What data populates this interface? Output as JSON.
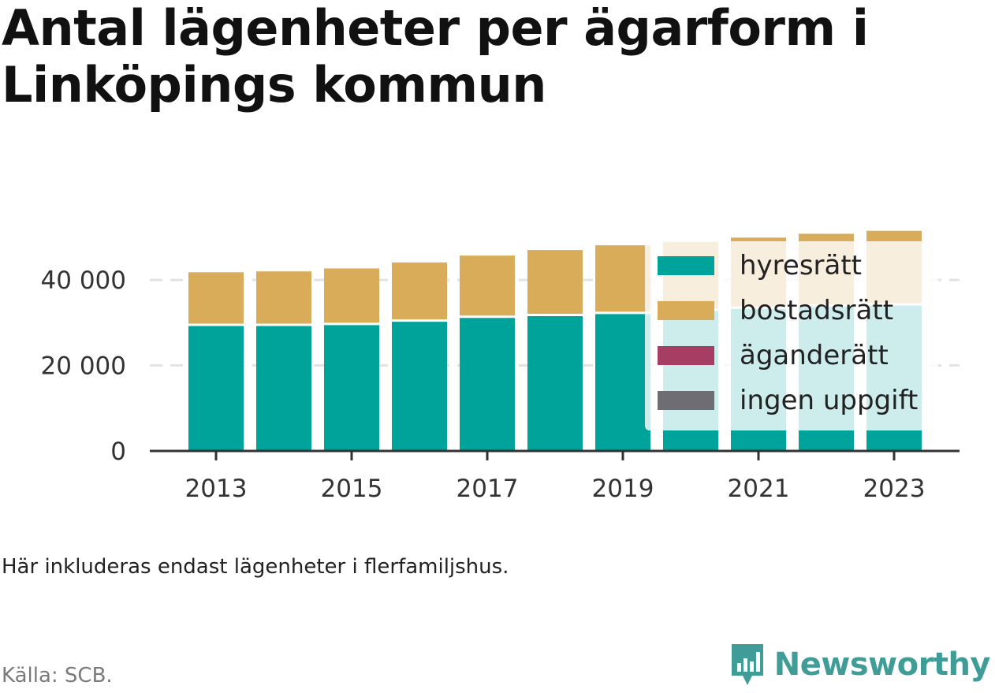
{
  "title": "Antal lägenheter per ägarform i Linköpings kommun",
  "note": "Här inkluderas endast lägenheter i flerfamiljshus.",
  "source": "Källa: SCB.",
  "brand": {
    "name": "Newsworthy",
    "logo_icon": "newsworthy-chart-icon",
    "color": "#3f9c97"
  },
  "chart_data": {
    "type": "bar",
    "stacked": true,
    "categories": [
      "2013",
      "2014",
      "2015",
      "2016",
      "2017",
      "2018",
      "2019",
      "2020",
      "2021",
      "2022",
      "2023"
    ],
    "x_tick_labels": [
      "2013",
      "",
      "2015",
      "",
      "2017",
      "",
      "2019",
      "",
      "2021",
      "",
      "2023"
    ],
    "series": [
      {
        "name": "hyresrätt",
        "color": "#00a39a",
        "values": [
          29500,
          29500,
          29700,
          30500,
          31400,
          31800,
          32300,
          33000,
          33500,
          34000,
          34300
        ]
      },
      {
        "name": "bostadsrätt",
        "color": "#d9ac5a",
        "values": [
          12300,
          12500,
          13000,
          13600,
          14300,
          15200,
          15800,
          15900,
          16400,
          16800,
          17200
        ]
      },
      {
        "name": "äganderätt",
        "color": "#a63d63",
        "values": [
          0,
          0,
          0,
          0,
          0,
          0,
          0,
          0,
          0,
          0,
          0
        ]
      },
      {
        "name": "ingen uppgift",
        "color": "#6e6d74",
        "values": [
          0,
          0,
          0,
          0,
          0,
          0,
          0,
          0,
          0,
          0,
          0
        ]
      }
    ],
    "y_ticks": [
      0,
      20000,
      40000
    ],
    "y_tick_labels": [
      "0",
      "20 000",
      "40 000"
    ],
    "ylim": [
      0,
      52000
    ],
    "grid": true,
    "legend_position": "top-right",
    "xlabel": "",
    "ylabel": ""
  }
}
